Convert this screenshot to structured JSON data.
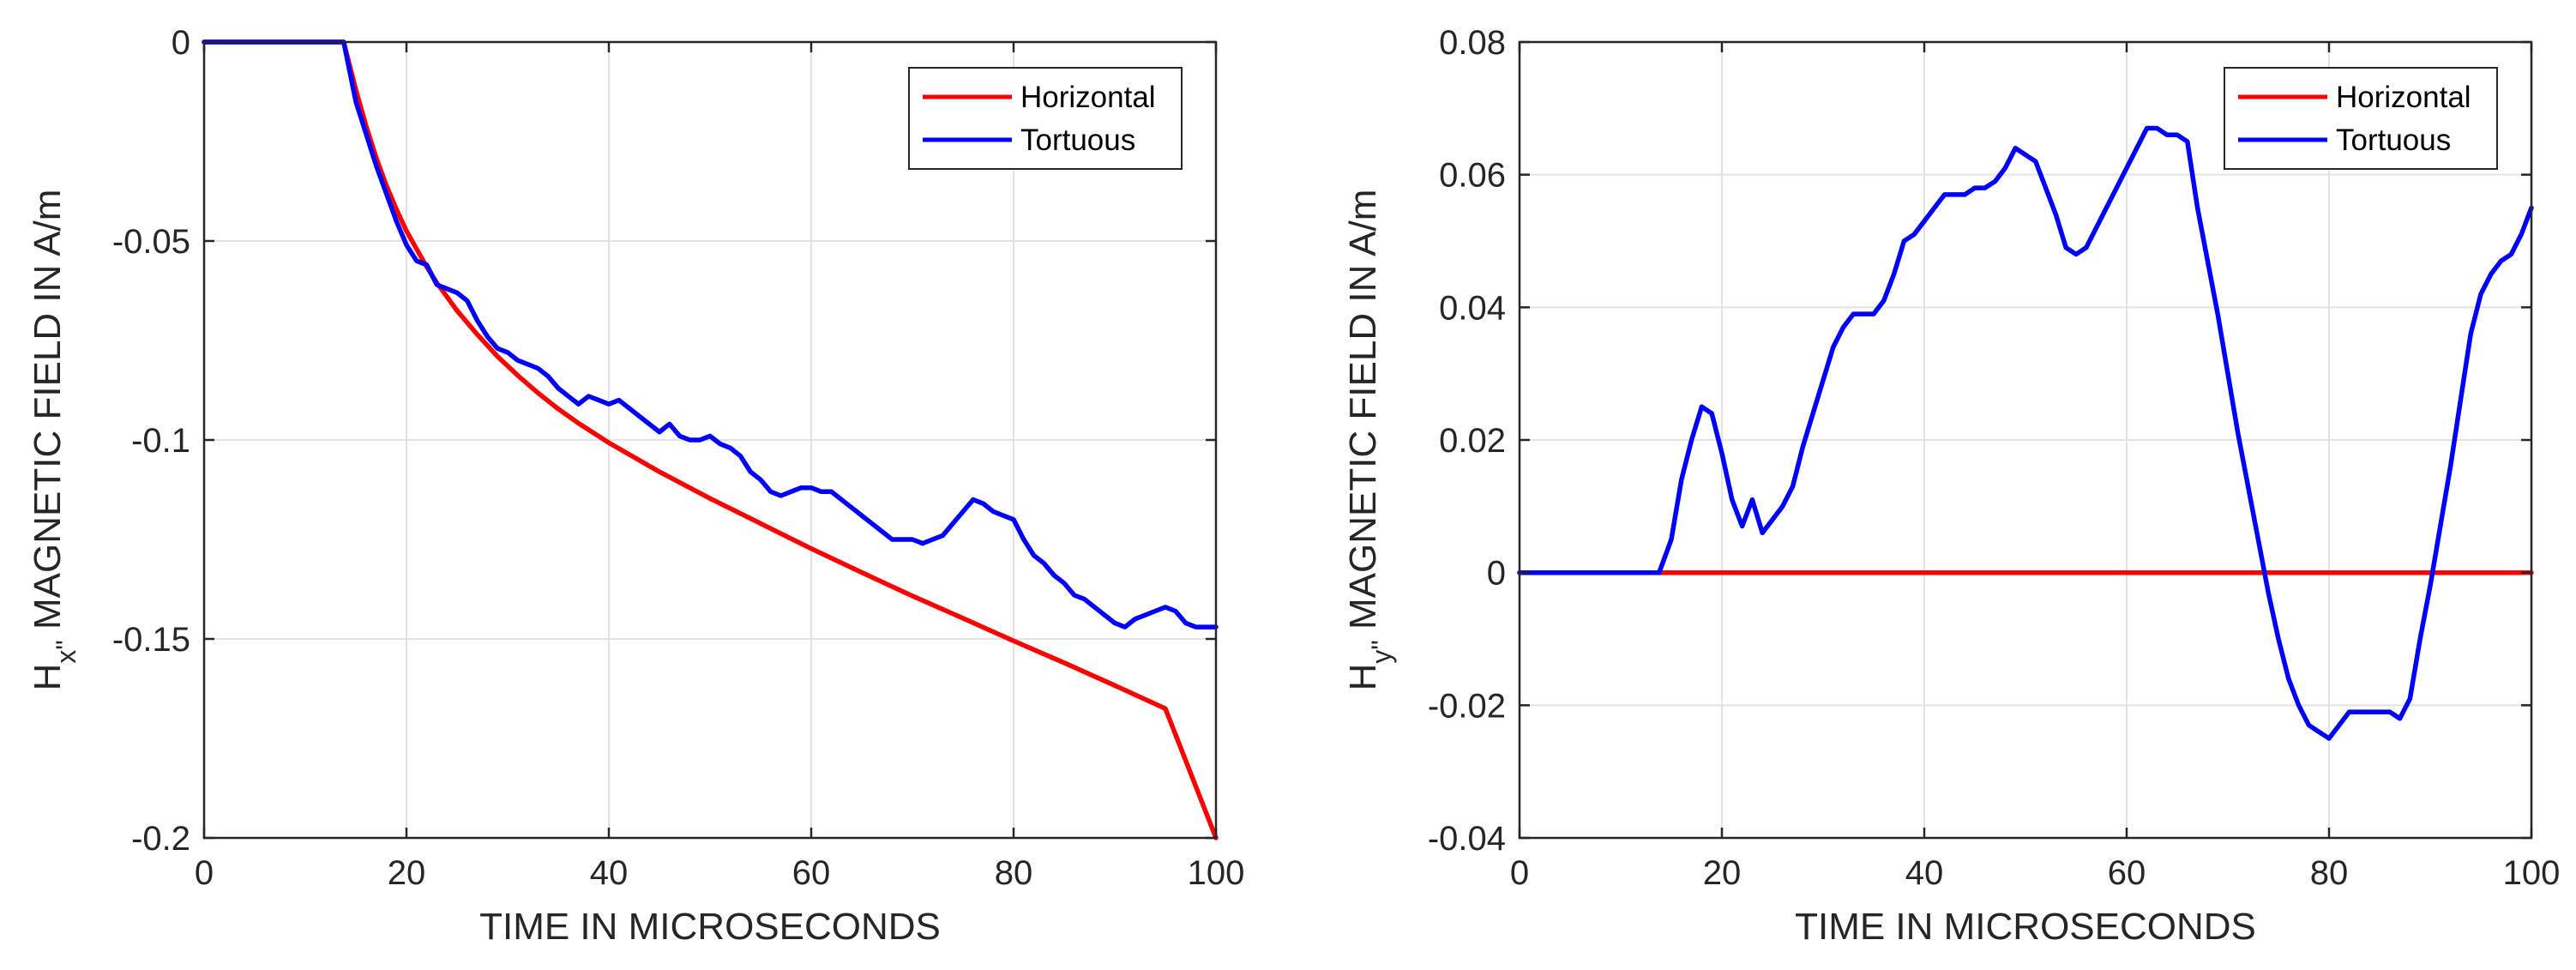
{
  "chart_data": [
    {
      "type": "line",
      "xlabel": "TIME IN MICROSECONDS",
      "ylabel": {
        "prefix": "H",
        "sub": "x\"",
        "suffix": " MAGNETIC FIELD IN A/m"
      },
      "xlim": [
        0,
        100
      ],
      "ylim": [
        -0.2,
        0
      ],
      "xticks": [
        0,
        20,
        40,
        60,
        80,
        100
      ],
      "yticks": [
        -0.2,
        -0.15,
        -0.1,
        -0.05,
        0
      ],
      "ytick_labels": [
        "-0.2",
        "-0.15",
        "-0.1",
        "-0.05",
        "0"
      ],
      "grid": true,
      "legend": "top-right",
      "series": [
        {
          "name": "Horizontal",
          "color": "#ff0000",
          "x": [
            0,
            13.8,
            15,
            16,
            17,
            18,
            19,
            20,
            21,
            22,
            23,
            24,
            25,
            27,
            29,
            31,
            33,
            35,
            37,
            40,
            45,
            50,
            55,
            60,
            65,
            70,
            75,
            80,
            85,
            90,
            95,
            100
          ],
          "y": [
            0,
            0,
            -0.012,
            -0.021,
            -0.029,
            -0.036,
            -0.042,
            -0.0475,
            -0.052,
            -0.0565,
            -0.0605,
            -0.064,
            -0.0675,
            -0.0735,
            -0.079,
            -0.0838,
            -0.0882,
            -0.0922,
            -0.0958,
            -0.1007,
            -0.108,
            -0.1147,
            -0.121,
            -0.1273,
            -0.1333,
            -0.1392,
            -0.1448,
            -0.1505,
            -0.156,
            -0.1617,
            -0.1675,
            -0.2
          ]
        },
        {
          "name": "Tortuous",
          "color": "#0000ff",
          "x": [
            0,
            13.8,
            15,
            16,
            17,
            18,
            19,
            20,
            21,
            22,
            23,
            24,
            25,
            26,
            27,
            28,
            29,
            30,
            31,
            32,
            33,
            34,
            35,
            36,
            37,
            38,
            39,
            40,
            41,
            42,
            43,
            44,
            45,
            46,
            47,
            48,
            49,
            50,
            51,
            52,
            53,
            54,
            55,
            56,
            57,
            58,
            59,
            60,
            61,
            62,
            63,
            64,
            65,
            66,
            67,
            68,
            69,
            70,
            71,
            72,
            73,
            74,
            75,
            76,
            77,
            78,
            79,
            80,
            81,
            82,
            83,
            84,
            85,
            86,
            87,
            88,
            89,
            90,
            91,
            92,
            93,
            94,
            95,
            96,
            97,
            98,
            99,
            100
          ],
          "y": [
            0,
            0,
            -0.015,
            -0.023,
            -0.031,
            -0.038,
            -0.045,
            -0.051,
            -0.055,
            -0.056,
            -0.061,
            -0.062,
            -0.063,
            -0.065,
            -0.07,
            -0.074,
            -0.077,
            -0.078,
            -0.08,
            -0.081,
            -0.082,
            -0.084,
            -0.087,
            -0.089,
            -0.091,
            -0.089,
            -0.09,
            -0.091,
            -0.09,
            -0.092,
            -0.094,
            -0.096,
            -0.098,
            -0.096,
            -0.099,
            -0.1,
            -0.1,
            -0.099,
            -0.101,
            -0.102,
            -0.104,
            -0.108,
            -0.11,
            -0.113,
            -0.114,
            -0.113,
            -0.112,
            -0.112,
            -0.113,
            -0.113,
            -0.115,
            -0.117,
            -0.119,
            -0.121,
            -0.123,
            -0.125,
            -0.125,
            -0.125,
            -0.126,
            -0.125,
            -0.124,
            -0.121,
            -0.118,
            -0.115,
            -0.116,
            -0.118,
            -0.119,
            -0.12,
            -0.125,
            -0.129,
            -0.131,
            -0.134,
            -0.136,
            -0.139,
            -0.14,
            -0.142,
            -0.144,
            -0.146,
            -0.147,
            -0.145,
            -0.144,
            -0.143,
            -0.142,
            -0.143,
            -0.146,
            -0.147,
            -0.147,
            -0.147
          ]
        }
      ]
    },
    {
      "type": "line",
      "xlabel": "TIME IN MICROSECONDS",
      "ylabel": {
        "prefix": "H",
        "sub": "y\"",
        "suffix": " MAGNETIC FIELD IN A/m"
      },
      "xlim": [
        0,
        100
      ],
      "ylim": [
        -0.04,
        0.08
      ],
      "xticks": [
        0,
        20,
        40,
        60,
        80,
        100
      ],
      "yticks": [
        -0.04,
        -0.02,
        0,
        0.02,
        0.04,
        0.06,
        0.08
      ],
      "ytick_labels": [
        "-0.04",
        "-0.02",
        "0",
        "0.02",
        "0.04",
        "0.06",
        "0.08"
      ],
      "grid": true,
      "legend": "top-right",
      "series": [
        {
          "name": "Horizontal",
          "color": "#ff0000",
          "x": [
            0,
            100
          ],
          "y": [
            0,
            0
          ]
        },
        {
          "name": "Tortuous",
          "color": "#0000ff",
          "x": [
            0,
            13.8,
            15,
            16,
            17,
            18,
            19,
            20,
            21,
            22,
            23,
            24,
            25,
            26,
            27,
            28,
            29,
            30,
            31,
            32,
            33,
            34,
            35,
            36,
            37,
            38,
            39,
            40,
            41,
            42,
            43,
            44,
            45,
            46,
            47,
            48,
            49,
            50,
            51,
            52,
            53,
            54,
            55,
            56,
            57,
            58,
            59,
            60,
            61,
            62,
            63,
            64,
            65,
            66,
            67,
            68,
            69,
            70,
            71,
            72,
            73,
            74,
            75,
            76,
            77,
            78,
            79,
            80,
            81,
            82,
            83,
            84,
            85,
            86,
            87,
            88,
            89,
            90,
            91,
            92,
            93,
            94,
            95,
            96,
            97,
            98,
            99,
            100
          ],
          "y": [
            0,
            0,
            0.005,
            0.014,
            0.02,
            0.025,
            0.024,
            0.018,
            0.011,
            0.007,
            0.011,
            0.006,
            0.008,
            0.01,
            0.013,
            0.019,
            0.024,
            0.029,
            0.034,
            0.037,
            0.039,
            0.039,
            0.039,
            0.041,
            0.045,
            0.05,
            0.051,
            0.053,
            0.055,
            0.057,
            0.057,
            0.057,
            0.058,
            0.058,
            0.059,
            0.061,
            0.064,
            0.063,
            0.062,
            0.058,
            0.054,
            0.049,
            0.048,
            0.049,
            0.052,
            0.055,
            0.058,
            0.061,
            0.064,
            0.067,
            0.067,
            0.066,
            0.066,
            0.065,
            0.055,
            0.047,
            0.039,
            0.03,
            0.021,
            0.013,
            0.005,
            -0.003,
            -0.01,
            -0.016,
            -0.02,
            -0.023,
            -0.024,
            -0.025,
            -0.023,
            -0.021,
            -0.021,
            -0.021,
            -0.021,
            -0.021,
            -0.022,
            -0.019,
            -0.01,
            -0.002,
            0.007,
            0.016,
            0.026,
            0.036,
            0.042,
            0.045,
            0.047,
            0.048,
            0.051,
            0.055
          ]
        }
      ]
    }
  ]
}
